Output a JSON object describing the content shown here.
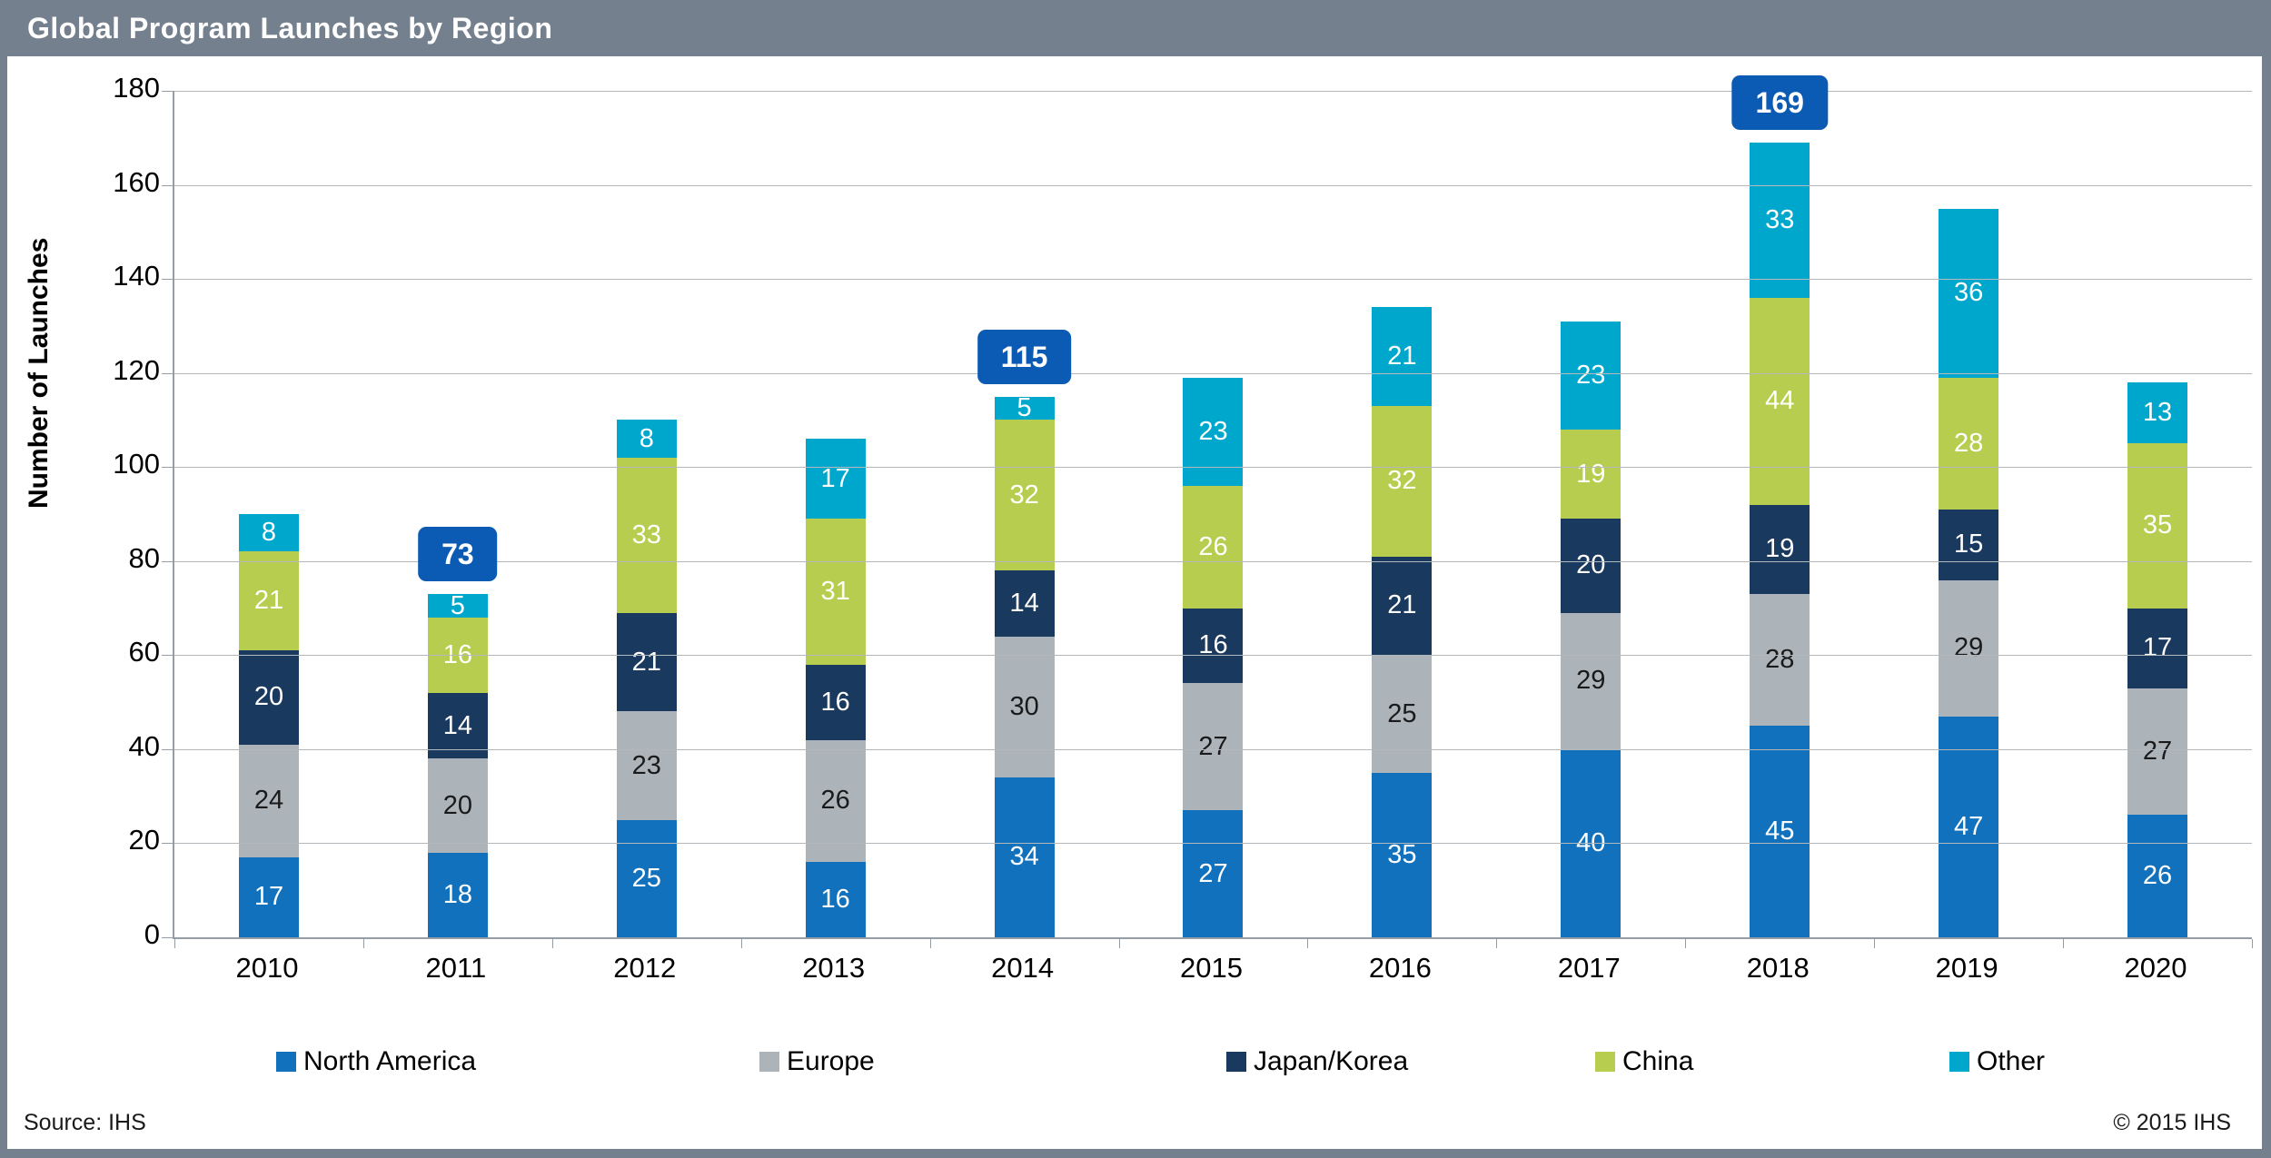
{
  "header": {
    "title": "Global Program Launches by Region"
  },
  "footer": {
    "source": "Source: IHS",
    "copyright": "© 2015 IHS"
  },
  "chart_data": {
    "type": "bar",
    "stacked": true,
    "title": "Global Program Launches by Region",
    "xlabel": "",
    "ylabel": "Number of Launches",
    "ylim": [
      0,
      180
    ],
    "ytick_step": 20,
    "grid": true,
    "legend_position": "bottom",
    "categories": [
      "2010",
      "2011",
      "2012",
      "2013",
      "2014",
      "2015",
      "2016",
      "2017",
      "2018",
      "2019",
      "2020"
    ],
    "series": [
      {
        "name": "North America",
        "color": "#1271BC",
        "label_color": "#FFFFFF",
        "values": [
          17,
          18,
          25,
          16,
          34,
          27,
          35,
          40,
          45,
          47,
          26
        ]
      },
      {
        "name": "Europe",
        "color": "#ACB4BA",
        "label_color": "#1A1A1A",
        "values": [
          24,
          20,
          23,
          26,
          30,
          27,
          25,
          29,
          28,
          29,
          27
        ]
      },
      {
        "name": "Japan/Korea",
        "color": "#19395E",
        "label_color": "#FFFFFF",
        "values": [
          20,
          14,
          21,
          16,
          14,
          16,
          21,
          20,
          19,
          15,
          17
        ]
      },
      {
        "name": "China",
        "color": "#B7CD4F",
        "label_color": "#FFFFFF",
        "values": [
          21,
          16,
          33,
          31,
          32,
          26,
          32,
          19,
          44,
          28,
          35
        ]
      },
      {
        "name": "Other",
        "color": "#00A7CC",
        "label_color": "#FFFFFF",
        "values": [
          8,
          5,
          8,
          17,
          5,
          23,
          21,
          23,
          33,
          36,
          13
        ]
      }
    ],
    "callouts": [
      {
        "category": "2011",
        "value": 73
      },
      {
        "category": "2014",
        "value": 115
      },
      {
        "category": "2018",
        "value": 169
      }
    ],
    "callout_color": "#0B5BB5",
    "colors": {
      "header_bar": "#75808E",
      "gridline": "#B3B8BD",
      "axis": "#959CA3"
    }
  },
  "legend_lefts": [
    296,
    828,
    1342,
    1748,
    2138
  ]
}
